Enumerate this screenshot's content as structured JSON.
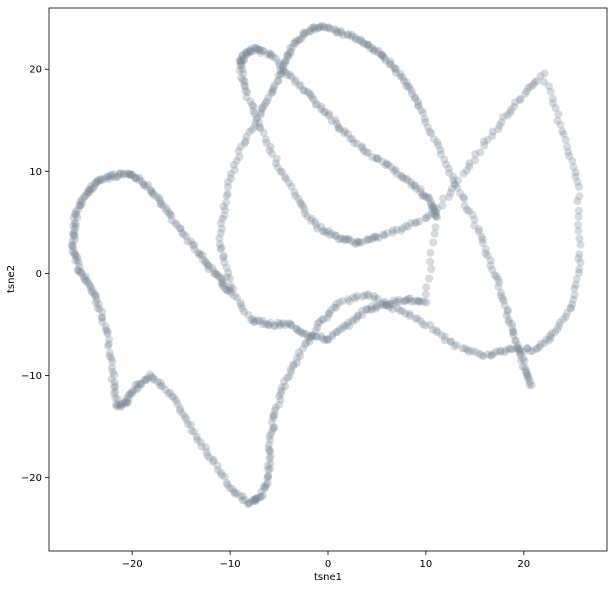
{
  "chart_data": {
    "type": "scatter",
    "title": "",
    "xlabel": "tsne1",
    "ylabel": "tsne2",
    "xlim": [
      -28.5,
      28.5
    ],
    "ylim": [
      -27.2,
      26.0
    ],
    "xticks": [
      -20,
      -10,
      0,
      10,
      20
    ],
    "yticks": [
      -20,
      -10,
      0,
      10,
      20
    ],
    "xtick_labels": [
      "−20",
      "−10",
      "0",
      "10",
      "20"
    ],
    "ytick_labels": [
      "−20",
      "−10",
      "0",
      "10",
      "20"
    ],
    "grid": false,
    "marker_color": "#778899",
    "marker_alpha": 0.3,
    "series": [
      {
        "description_points": true,
        "x": [
          20.8,
          20.0,
          19.2,
          18.2,
          17.0,
          15.5,
          13.5,
          11.5,
          9.5,
          8.0,
          6.5,
          5.0,
          3.5,
          1.5,
          -0.5,
          -2.0,
          -3.5,
          -4.5,
          -5.5,
          -7.0,
          -9.0,
          -10.5,
          -11.0,
          -10.0,
          -8.0,
          -6.0,
          -4.0,
          -2.0,
          0.0,
          2.0,
          4.0,
          6.0,
          8.0,
          10.0,
          11.0,
          10.5,
          9.0,
          7.0,
          4.5,
          2.0,
          0.0,
          -2.0,
          -4.0,
          -6.0,
          -7.5,
          -8.5,
          -9.0,
          -8.5,
          -7.0,
          -5.0,
          -3.0,
          -1.0,
          1.0,
          3.0,
          5.0,
          8.0,
          11.0,
          14.0,
          17.0,
          19.5,
          22.0,
          24.0,
          25.5,
          25.8,
          25.0,
          23.0,
          21.0,
          18.5,
          16.0,
          13.0,
          10.0,
          7.0,
          4.0,
          1.0,
          -1.0,
          -3.0,
          -4.5,
          -5.5,
          -6.0,
          -6.0,
          -7.0,
          -8.0,
          -10.0,
          -12.0,
          -14.0,
          -16.0,
          -18.0,
          -19.5,
          -20.5,
          -21.5,
          -22.0,
          -22.5,
          -23.5,
          -24.5,
          -25.5,
          -26.0,
          -26.0,
          -25.5,
          -24.5,
          -23.5,
          -22.0,
          -20.5,
          -19.0,
          -17.5,
          -16.0,
          -14.0,
          -12.5,
          -11.0,
          -10.0
        ],
        "y": [
          -11.0,
          -9.0,
          -6.5,
          -3.5,
          0.0,
          4.0,
          8.0,
          12.0,
          16.0,
          18.5,
          20.5,
          21.8,
          22.8,
          23.5,
          24.2,
          23.8,
          22.5,
          20.5,
          18.0,
          15.5,
          12.0,
          7.5,
          3.0,
          -1.0,
          -4.5,
          -5.0,
          -5.0,
          -6.0,
          -6.5,
          -5.0,
          -3.5,
          -3.0,
          -2.5,
          -3.0,
          5.5,
          7.0,
          8.5,
          10.0,
          11.5,
          13.5,
          15.5,
          17.5,
          19.5,
          21.5,
          22.0,
          21.5,
          20.5,
          18.0,
          14.5,
          10.5,
          7.0,
          4.5,
          3.5,
          3.0,
          3.5,
          4.5,
          6.0,
          10.0,
          14.0,
          17.0,
          19.5,
          14.0,
          9.0,
          2.0,
          -3.0,
          -6.0,
          -7.5,
          -7.5,
          -8.0,
          -7.0,
          -5.0,
          -3.5,
          -2.0,
          -3.0,
          -5.0,
          -8.0,
          -11.0,
          -14.0,
          -17.0,
          -20.0,
          -22.0,
          -22.5,
          -21.0,
          -18.0,
          -15.0,
          -12.0,
          -10.0,
          -11.0,
          -12.5,
          -13.0,
          -10.0,
          -6.0,
          -3.0,
          -1.0,
          0.5,
          2.5,
          4.5,
          6.5,
          8.0,
          9.0,
          9.5,
          9.8,
          9.0,
          7.5,
          5.5,
          3.0,
          1.0,
          -0.5,
          -2.0
        ]
      }
    ]
  }
}
